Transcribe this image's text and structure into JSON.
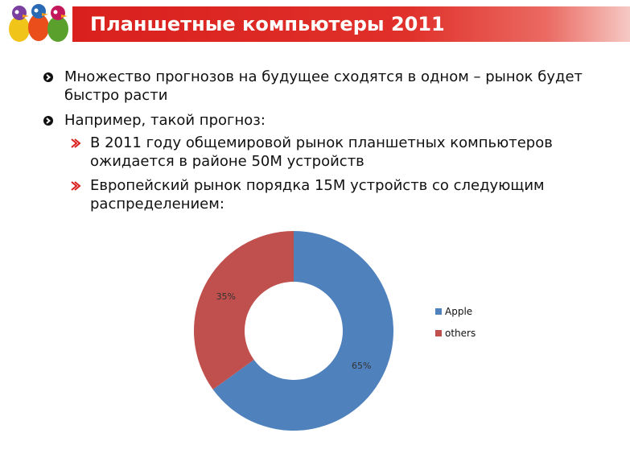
{
  "slide": {
    "title": "Планшетные компьютеры 2011",
    "bullets": [
      {
        "level": 1,
        "lines": [
          "Множество прогнозов на будущее сходятся в одном – рынок будет",
          "быстро расти"
        ]
      },
      {
        "level": 1,
        "lines": [
          "Например, такой прогноз:"
        ]
      },
      {
        "level": 2,
        "lines": [
          "В 2011 году общемировой рынок планшетных компьютеров",
          "ожидается в районе 50М устройств"
        ]
      },
      {
        "level": 2,
        "lines": [
          "Европейский рынок порядка 15М устройств со следующим",
          "распределением:"
        ]
      }
    ],
    "colors": {
      "title_bar": "#d9201d",
      "bullet_l1": "#111111",
      "bullet_l2": "#d9201d"
    }
  },
  "chart_data": {
    "type": "pie",
    "style": "donut",
    "categories": [
      "Apple",
      "others"
    ],
    "values": [
      65,
      35
    ],
    "labels": [
      "65%",
      "35%"
    ],
    "colors": [
      "#4f81bd",
      "#c0504d"
    ],
    "legend": "right"
  }
}
